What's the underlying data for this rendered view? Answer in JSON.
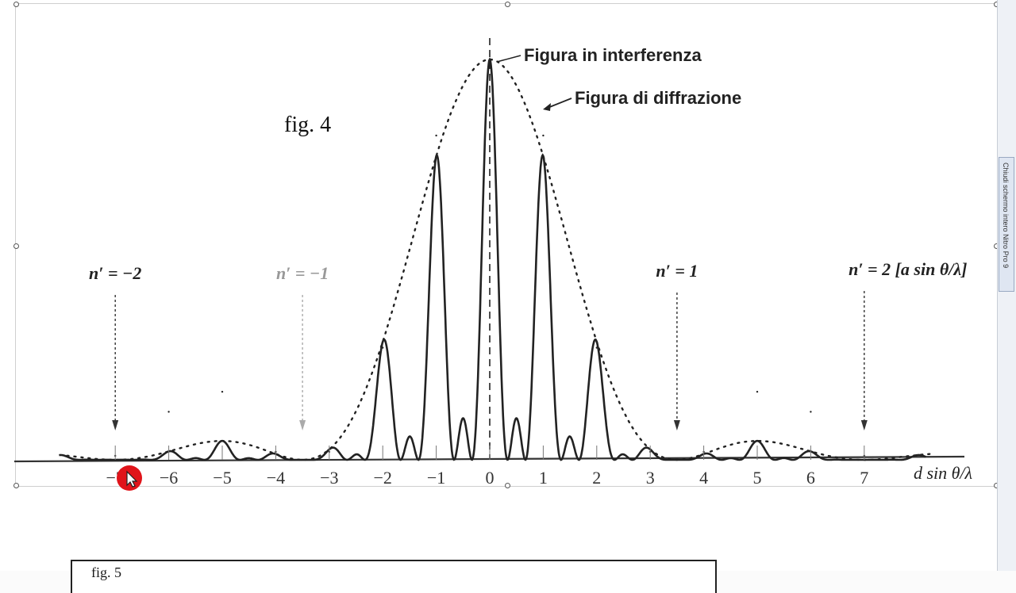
{
  "figure_label": "fig. 4",
  "next_figure_label": "fig. 5",
  "toolbar": {
    "close_fullscreen": "Chiudi schermo intero",
    "app_name": "Nitro Pro 9"
  },
  "chart_data": {
    "type": "line",
    "series": [
      {
        "name": "Figura in interferenza",
        "style": "solid"
      },
      {
        "name": "Figura di diffrazione",
        "style": "dotted"
      }
    ],
    "x_ticks": [
      "−7",
      "−6",
      "−5",
      "−4",
      "−3",
      "−2",
      "−1",
      "0",
      "1",
      "2",
      "3",
      "4",
      "5",
      "6",
      "7"
    ],
    "xlabel": "d sin θ/λ",
    "xlim": [
      -8,
      8.5
    ],
    "interference_peaks": {
      "x": [
        -7,
        -6,
        -5,
        -4,
        -3,
        -2,
        -1,
        0,
        1,
        2,
        3,
        4,
        5,
        6,
        7
      ],
      "y": [
        0.01,
        0.12,
        0.17,
        0.02,
        0.02,
        0.28,
        0.81,
        1.0,
        0.81,
        0.28,
        0.02,
        0.02,
        0.17,
        0.12,
        0.01
      ]
    },
    "annotations": [
      {
        "text": "n′ = −2",
        "x": -7
      },
      {
        "text": "n′ = −1",
        "x": -3.5
      },
      {
        "text": "n′ = 1",
        "x": 3.5
      },
      {
        "text": "n′ = 2  [a sin θ/λ]",
        "x": 7
      }
    ],
    "colors": {
      "curve": "#222222",
      "axis": "#333333",
      "cursor": "#e0141a"
    }
  }
}
